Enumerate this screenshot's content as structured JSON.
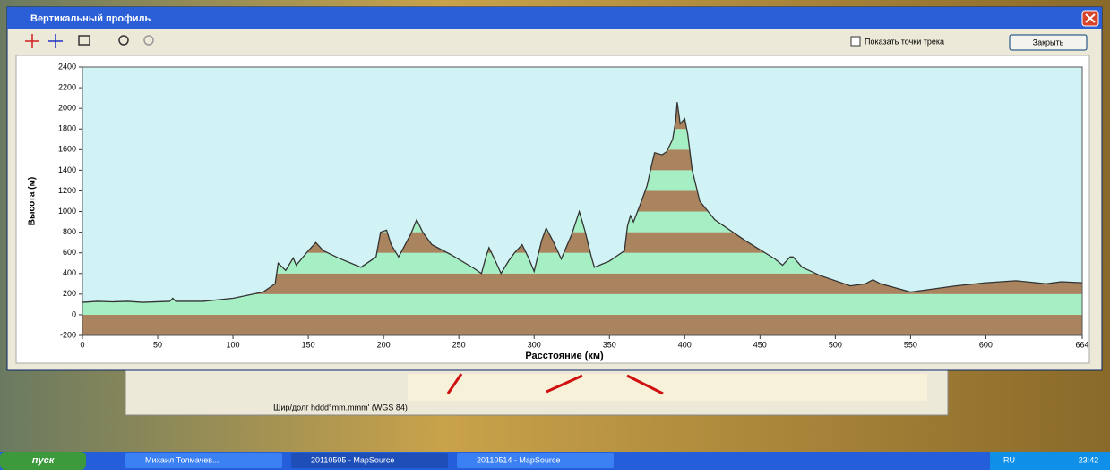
{
  "window": {
    "title": "Вертикальный профиль",
    "checkbox_label": "Показать точки трека",
    "close_button": "Закрыть"
  },
  "chart_data": {
    "type": "area",
    "ylabel": "Высота (м)",
    "xlabel": "Расстояние (км)",
    "x": [
      0,
      10,
      20,
      30,
      40,
      58,
      60,
      62,
      80,
      100,
      120,
      128,
      130,
      135,
      140,
      142,
      150,
      155,
      160,
      170,
      185,
      195,
      198,
      202,
      205,
      210,
      218,
      222,
      226,
      232,
      245,
      260,
      265,
      268,
      270,
      274,
      278,
      283,
      287,
      292,
      296,
      300,
      305,
      308,
      313,
      318,
      325,
      330,
      334,
      338,
      340,
      350,
      360,
      362,
      364,
      366,
      370,
      375,
      378,
      380,
      385,
      388,
      392,
      394,
      395,
      397,
      400,
      402,
      405,
      410,
      420,
      440,
      460,
      465,
      470,
      472,
      478,
      490,
      510,
      520,
      525,
      530,
      540,
      550,
      560,
      580,
      600,
      620,
      640,
      650,
      664
    ],
    "values": [
      120,
      130,
      125,
      130,
      120,
      130,
      160,
      130,
      130,
      160,
      220,
      300,
      500,
      430,
      550,
      480,
      620,
      700,
      620,
      550,
      460,
      560,
      800,
      820,
      680,
      560,
      780,
      920,
      800,
      680,
      580,
      450,
      400,
      560,
      650,
      530,
      400,
      520,
      600,
      680,
      560,
      420,
      720,
      840,
      700,
      540,
      780,
      1000,
      800,
      560,
      460,
      520,
      620,
      860,
      960,
      900,
      1050,
      1250,
      1450,
      1570,
      1550,
      1580,
      1700,
      1880,
      2060,
      1850,
      1900,
      1750,
      1400,
      1100,
      920,
      720,
      540,
      480,
      560,
      560,
      460,
      380,
      280,
      300,
      340,
      300,
      260,
      220,
      240,
      280,
      310,
      330,
      300,
      320,
      310
    ],
    "xlim": [
      0,
      664
    ],
    "ylim": [
      -200,
      2400
    ],
    "xticks": [
      0,
      50,
      100,
      150,
      200,
      250,
      300,
      350,
      400,
      450,
      500,
      550,
      600,
      664
    ],
    "yticks": [
      -200,
      0,
      200,
      400,
      600,
      800,
      1000,
      1200,
      1400,
      1600,
      1800,
      2000,
      2200,
      2400
    ],
    "band_colors": [
      "#a9845f",
      "#a6efc4"
    ],
    "line_color": "#333333",
    "background": "#d2f3f6"
  },
  "status": {
    "coords": "Шир/долг hddd°mm.mmm' (WGS 84)"
  },
  "taskbar": {
    "start": "пуск",
    "items": [
      "Михаил Толмачев...",
      "20110505 - MapSource",
      "20110514 - MapSource"
    ],
    "lang": "RU",
    "clock": "23:42"
  }
}
